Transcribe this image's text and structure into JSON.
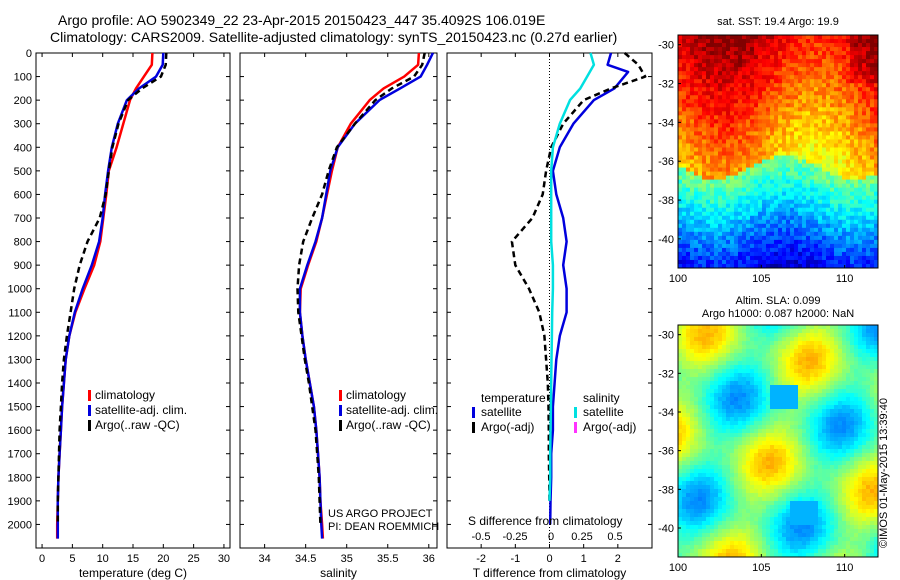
{
  "header": {
    "line1": "Argo profile: AO 5902349_22 23-Apr-2015 20150423_447 35.4092S 106.019E",
    "line2": "Climatology: CARS2009. Satellite-adjusted climatology: synTS_20150423.nc (0.27d earlier)"
  },
  "colors": {
    "clim": "#ff0000",
    "sat": "#0000dd",
    "argo": "#000000",
    "sat_s": "#00e0e0",
    "argo_s": "#ff33ff"
  },
  "chart_data": [
    {
      "type": "line",
      "name": "temperature-panel",
      "xlabel": "temperature (deg C)",
      "ylabel": "",
      "xlim": [
        -1,
        31
      ],
      "ylim": [
        0,
        2100
      ],
      "xticks": [
        0,
        5,
        10,
        15,
        20,
        25,
        30
      ],
      "yticks": [
        0,
        100,
        200,
        300,
        400,
        500,
        600,
        700,
        800,
        900,
        1000,
        1100,
        1200,
        1300,
        1400,
        1500,
        1600,
        1700,
        1800,
        1900,
        2000
      ],
      "legend": [
        "climatology",
        "satellite-adj. clim.",
        "Argo(..raw -QC)"
      ],
      "series": [
        {
          "name": "climatology",
          "style": "clim",
          "x": [
            18.2,
            18.1,
            16.8,
            15.5,
            14.5,
            13.4,
            12.3,
            11.0,
            10.6,
            10.1,
            9.6,
            8.6,
            7.0,
            5.5,
            4.5,
            3.9,
            3.6,
            3.3,
            3.1,
            2.9,
            2.7,
            2.6,
            2.5,
            2.5
          ],
          "y": [
            0,
            50,
            100,
            150,
            200,
            300,
            400,
            500,
            600,
            700,
            800,
            900,
            1000,
            1100,
            1200,
            1300,
            1400,
            1500,
            1600,
            1700,
            1800,
            1900,
            2000,
            2060
          ]
        },
        {
          "name": "satellite-adj. clim.",
          "style": "sat",
          "x": [
            20.0,
            19.9,
            18.8,
            16.0,
            14.0,
            12.5,
            11.5,
            10.9,
            10.4,
            10.0,
            9.4,
            8.2,
            6.7,
            5.4,
            4.5,
            3.9,
            3.6,
            3.3,
            3.1,
            2.9,
            2.7,
            2.6,
            2.6,
            2.6
          ],
          "y": [
            0,
            50,
            100,
            150,
            200,
            300,
            400,
            500,
            600,
            700,
            800,
            900,
            1000,
            1100,
            1200,
            1300,
            1400,
            1500,
            1600,
            1700,
            1800,
            1900,
            2000,
            2060
          ]
        },
        {
          "name": "Argo(..raw -QC)",
          "style": "argo",
          "x": [
            20.5,
            20.4,
            19.6,
            16.5,
            14.2,
            12.6,
            11.6,
            11.0,
            10.5,
            9.5,
            7.5,
            6.2,
            5.3,
            4.7,
            4.1,
            3.6,
            3.3,
            3.1,
            2.9,
            2.8,
            2.7,
            2.6,
            2.6
          ],
          "y": [
            0,
            50,
            100,
            150,
            200,
            300,
            400,
            500,
            600,
            700,
            800,
            900,
            1000,
            1100,
            1200,
            1300,
            1400,
            1500,
            1600,
            1700,
            1800,
            1900,
            2000
          ]
        }
      ]
    },
    {
      "type": "line",
      "name": "salinity-panel",
      "xlabel": "salinity",
      "ylabel": "",
      "xlim": [
        33.7,
        36.1
      ],
      "ylim": [
        0,
        2100
      ],
      "xticks": [
        34,
        34.5,
        35,
        35.5,
        36
      ],
      "legend": [
        "climatology",
        "satellite-adj. clim.",
        "Argo(..raw -QC)"
      ],
      "credits": [
        "US ARGO PROJECT",
        "PI: DEAN ROEMMICH"
      ],
      "series": [
        {
          "name": "climatology",
          "style": "clim",
          "x": [
            35.88,
            35.87,
            35.7,
            35.45,
            35.28,
            35.05,
            34.89,
            34.82,
            34.76,
            34.7,
            34.63,
            34.53,
            34.44,
            34.43,
            34.46,
            34.5,
            34.55,
            34.6,
            34.63,
            34.65,
            34.67,
            34.68,
            34.7,
            34.71
          ],
          "y": [
            0,
            50,
            100,
            150,
            200,
            300,
            400,
            500,
            600,
            700,
            800,
            900,
            1000,
            1100,
            1200,
            1300,
            1400,
            1500,
            1600,
            1700,
            1800,
            1900,
            2000,
            2060
          ]
        },
        {
          "name": "satellite-adj. clim.",
          "style": "sat",
          "x": [
            36.05,
            35.98,
            35.9,
            35.65,
            35.4,
            35.1,
            34.89,
            34.8,
            34.75,
            34.7,
            34.62,
            34.52,
            34.43,
            34.43,
            34.46,
            34.5,
            34.55,
            34.6,
            34.63,
            34.65,
            34.67,
            34.68,
            34.69,
            34.7
          ],
          "y": [
            0,
            50,
            100,
            150,
            200,
            300,
            400,
            500,
            600,
            700,
            800,
            900,
            1000,
            1100,
            1200,
            1300,
            1400,
            1500,
            1600,
            1700,
            1800,
            1900,
            2000,
            2060
          ]
        },
        {
          "name": "Argo(..raw -QC)",
          "style": "argo",
          "x": [
            35.95,
            35.92,
            35.82,
            35.55,
            35.35,
            35.1,
            34.88,
            34.78,
            34.7,
            34.58,
            34.47,
            34.42,
            34.4,
            34.41,
            34.45,
            34.49,
            34.54,
            34.58,
            34.62,
            34.64,
            34.66,
            34.67,
            34.68
          ],
          "y": [
            0,
            50,
            100,
            150,
            200,
            300,
            400,
            500,
            600,
            700,
            800,
            900,
            1000,
            1100,
            1200,
            1300,
            1400,
            1500,
            1600,
            1700,
            1800,
            1900,
            2000
          ]
        }
      ]
    },
    {
      "type": "line",
      "name": "difference-panel",
      "xlabel": "T difference from climatology",
      "ylabel": "",
      "xlim": [
        -3,
        3
      ],
      "ylim": [
        0,
        2100
      ],
      "xticks": [
        -2,
        -1,
        0,
        1,
        2
      ],
      "top_axis_label": "S difference from climatology",
      "top_ticks": [
        {
          "value": -0.5,
          "label": "-0.5"
        },
        {
          "value": -0.25,
          "label": "-0.25"
        },
        {
          "value": 0,
          "label": "0"
        },
        {
          "value": 0.25,
          "label": "0.25"
        },
        {
          "value": 0.5,
          "label": "0.5"
        }
      ],
      "legend_temperature_title": "temperature",
      "legend_salinity_title": "salinity",
      "legend_temperature": [
        "satellite",
        "Argo(-adj)"
      ],
      "legend_salinity": [
        "satellite",
        "Argo(-adj)"
      ],
      "series": [
        {
          "name": "T satellite",
          "style": "sat",
          "x": [
            1.8,
            1.7,
            2.3,
            1.9,
            1.3,
            0.7,
            0.3,
            0.1,
            0.2,
            0.4,
            0.5,
            0.4,
            0.5,
            0.5,
            0.3,
            0.2,
            0.15,
            0.1,
            0.1,
            0.05,
            0.05,
            0.03,
            0.02
          ],
          "y": [
            0,
            50,
            80,
            150,
            200,
            300,
            400,
            500,
            600,
            700,
            800,
            900,
            1000,
            1100,
            1200,
            1300,
            1400,
            1500,
            1600,
            1700,
            1800,
            1900,
            2000
          ]
        },
        {
          "name": "T Argo(-adj)",
          "style": "argo",
          "x": [
            2.2,
            2.6,
            2.8,
            1.8,
            1.0,
            0.4,
            0.05,
            -0.1,
            -0.2,
            -0.5,
            -1.1,
            -1.0,
            -0.6,
            -0.3,
            -0.15,
            -0.1,
            -0.05,
            -0.03,
            -0.02,
            -0.02,
            -0.01,
            0
          ],
          "y": [
            0,
            50,
            100,
            150,
            200,
            300,
            400,
            500,
            600,
            700,
            800,
            900,
            1000,
            1100,
            1200,
            1300,
            1400,
            1500,
            1600,
            1700,
            1800,
            1900
          ]
        },
        {
          "name": "S satellite",
          "style": "sat_s",
          "x": [
            1.2,
            1.3,
            1.1,
            0.9,
            0.6,
            0.3,
            0.1,
            0.05,
            0.05,
            0.05,
            0.05,
            0.1,
            0.1,
            0.08,
            0.07,
            0.06,
            0.05,
            0.04,
            0.03,
            0.02,
            0.02,
            0.0
          ],
          "y": [
            0,
            50,
            100,
            150,
            200,
            300,
            400,
            500,
            600,
            700,
            800,
            900,
            1000,
            1100,
            1200,
            1300,
            1400,
            1500,
            1600,
            1700,
            1800,
            1900
          ]
        }
      ]
    },
    {
      "type": "heatmap",
      "name": "sst-map",
      "title": "sat. SST: 19.4 Argo: 19.9",
      "xlim": [
        100,
        112
      ],
      "ylim": [
        -41.5,
        -29.5
      ],
      "xticks": [
        100,
        105,
        110
      ],
      "yticks": [
        -30,
        -32,
        -34,
        -36,
        -38,
        -40
      ]
    },
    {
      "type": "heatmap",
      "name": "sla-map",
      "title_lines": [
        "Altim. SLA: 0.099",
        "Argo h1000: 0.087 h2000: NaN"
      ],
      "xlim": [
        100,
        112
      ],
      "ylim": [
        -41.5,
        -29.5
      ],
      "xticks": [
        100,
        105,
        110
      ],
      "yticks": [
        -30,
        -32,
        -34,
        -36,
        -38,
        -40
      ]
    }
  ],
  "credit": "©IMOS 01-May-2015 13:39:40"
}
